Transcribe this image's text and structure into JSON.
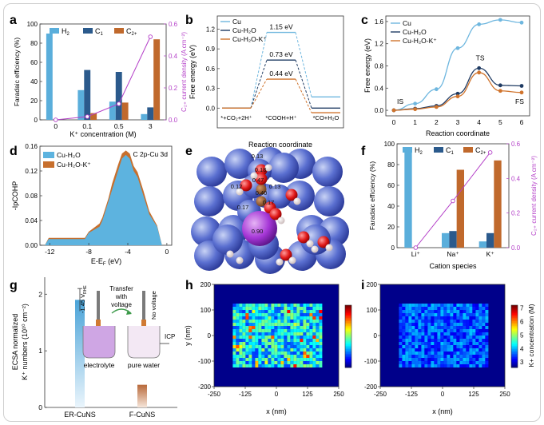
{
  "colors": {
    "h2": "#5aaedb",
    "c1": "#2b5a8c",
    "c2plus": "#c0692c",
    "density": "#b43fc8",
    "cu": "#6fb7df",
    "cu_h2o": "#1f3b63",
    "cu_h2o_k": "#d0742d",
    "pcohp_cu_h2o": "#5db3df",
    "pcohp_cu_h2o_k": "#c76f2d"
  },
  "panels": {
    "a": {
      "letter": "a",
      "legend": [
        "H",
        "C",
        "C"
      ],
      "legend_sub": [
        "2",
        "1",
        "2+"
      ]
    },
    "b": {
      "letter": "b"
    },
    "c": {
      "letter": "c"
    },
    "d": {
      "letter": "d",
      "annotation": "C 2p-Cu 3d"
    },
    "e": {
      "letter": "e",
      "charges": [
        "0.13",
        "0.18",
        "0.47",
        "0.12",
        "0.13",
        "0.40",
        "0.17",
        "0.17",
        "0.90"
      ]
    },
    "f": {
      "letter": "f"
    },
    "g": {
      "letter": "g",
      "ylabel": "ECSA normalized",
      "ylabel2": "K⁺ numbers (10¹⁰ cm⁻²)",
      "categories": [
        "ER-CuNS",
        "F-CuNS"
      ],
      "values": [
        1.9,
        0.4
      ],
      "yticks": [
        "0",
        "1",
        "2"
      ],
      "inset": {
        "voltage": "-1.45 V",
        "voltage_sub": "RHE",
        "transfer": [
          "Transfer",
          "with",
          "voltage"
        ],
        "no_voltage": "No voltage",
        "icp": "ICP",
        "electrolyte": "electrolyte",
        "pure_water": "pure water"
      }
    },
    "h": {
      "letter": "h"
    },
    "i": {
      "letter": "i"
    }
  },
  "chart_data": [
    {
      "panel": "a",
      "type": "bar",
      "categories": [
        "0",
        "0.1",
        "0.5",
        "3"
      ],
      "series": [
        {
          "name": "H2",
          "values": [
            90,
            31,
            19,
            6
          ]
        },
        {
          "name": "C1",
          "values": [
            0,
            52,
            50,
            13
          ]
        },
        {
          "name": "C2+",
          "values": [
            0,
            7,
            18,
            84
          ]
        }
      ],
      "line": {
        "name": "C2+ current density",
        "values": [
          0.0,
          0.02,
          0.1,
          0.52
        ]
      },
      "xlabel": "K⁺ concentration (M)",
      "ylabel": "Faradaic efficiency (%)",
      "y2label": "C₂₊ current density (A cm⁻²)",
      "ylim": [
        0,
        100
      ],
      "y2lim": [
        0,
        0.6
      ],
      "yticks": [
        "0",
        "20",
        "40",
        "60",
        "80",
        "100"
      ],
      "y2ticks": [
        "0.0",
        "0.2",
        "0.4",
        "0.6"
      ]
    },
    {
      "panel": "b",
      "type": "line",
      "xlabel": "Reaction coordinate",
      "ylabel": "Free energy (eV)",
      "ylim": [
        -0.3,
        1.4
      ],
      "yticks": [
        "0.0",
        "0.3",
        "0.6",
        "0.9",
        "1.2"
      ],
      "states": [
        "*+CO₂+2H⁺",
        "*COOH+H⁺",
        "*CO+H₂O"
      ],
      "series": [
        {
          "name": "Cu",
          "values": [
            0.0,
            1.15,
            0.17
          ]
        },
        {
          "name": "Cu-H₂O",
          "values": [
            0.0,
            0.73,
            0.0
          ]
        },
        {
          "name": "Cu-H₂O-K⁺",
          "values": [
            0.0,
            0.44,
            -0.07
          ]
        }
      ],
      "labels": [
        "1.15 eV",
        "0.73 eV",
        "0.44 eV"
      ]
    },
    {
      "panel": "c",
      "type": "line",
      "xlabel": "Reaction coordinate",
      "ylabel": "Free energy (eV)",
      "ylim": [
        -0.1,
        1.7
      ],
      "x": [
        0,
        1,
        2,
        3,
        4,
        5,
        6
      ],
      "yticks": [
        "0.0",
        "0.4",
        "0.8",
        "1.2",
        "1.6"
      ],
      "series": [
        {
          "name": "Cu",
          "values": [
            0.0,
            0.12,
            0.38,
            1.12,
            1.55,
            1.63,
            1.58
          ]
        },
        {
          "name": "Cu-H₂O",
          "values": [
            0.0,
            0.03,
            0.08,
            0.3,
            0.76,
            0.45,
            0.44
          ]
        },
        {
          "name": "Cu-H₂O-K⁺",
          "values": [
            0.0,
            0.02,
            0.06,
            0.25,
            0.68,
            0.35,
            0.32
          ]
        }
      ],
      "annotations": [
        "IS",
        "TS",
        "FS"
      ]
    },
    {
      "panel": "d",
      "type": "area",
      "xlabel": "E-E",
      "xlabel_sub": "F",
      "xlabel_unit": " (eV)",
      "ylabel": "-IpCOHP",
      "xlim": [
        -13,
        0.5
      ],
      "ylim": [
        0,
        0.16
      ],
      "xticks": [
        "-12",
        "-8",
        "-4",
        "0"
      ],
      "yticks": [
        "0.00",
        "0.04",
        "0.08",
        "0.12",
        "0.16"
      ],
      "series": [
        {
          "name": "Cu-H₂O",
          "x": [
            -12.5,
            -12.1,
            -8.4,
            -8.0,
            -6.9,
            -6.6,
            -6.0,
            -5.6,
            -5.0,
            -4.6,
            -4.2,
            -3.8,
            -3.4,
            -3.0,
            -2.4,
            -1.8,
            -1.0,
            -0.5
          ],
          "values": [
            0.0,
            0.01,
            0.01,
            0.02,
            0.03,
            0.04,
            0.07,
            0.09,
            0.12,
            0.14,
            0.146,
            0.14,
            0.12,
            0.11,
            0.08,
            0.05,
            0.03,
            0.0
          ]
        },
        {
          "name": "Cu-H₂O-K⁺",
          "x": [
            -12.5,
            -12.1,
            -8.4,
            -8.0,
            -6.9,
            -6.6,
            -6.0,
            -5.6,
            -5.0,
            -4.6,
            -4.2,
            -3.8,
            -3.4,
            -3.0,
            -2.4,
            -1.8,
            -1.0,
            -0.5
          ],
          "values": [
            0.0,
            0.012,
            0.012,
            0.022,
            0.035,
            0.045,
            0.075,
            0.1,
            0.13,
            0.148,
            0.153,
            0.148,
            0.128,
            0.118,
            0.088,
            0.055,
            0.032,
            0.0
          ]
        }
      ]
    },
    {
      "panel": "f",
      "type": "bar",
      "categories": [
        "Li⁺",
        "Na⁺",
        "K⁺"
      ],
      "series": [
        {
          "name": "H2",
          "values": [
            93,
            14,
            6
          ]
        },
        {
          "name": "C1",
          "values": [
            0,
            16,
            14
          ]
        },
        {
          "name": "C2+",
          "values": [
            0,
            75,
            84
          ]
        }
      ],
      "line": {
        "name": "C2+ current density",
        "values": [
          0.0,
          0.27,
          0.55
        ]
      },
      "xlabel": "Cation species",
      "ylabel": "Faradaic efficiency (%)",
      "y2label": "C₂₊ current density (A cm⁻²)",
      "ylim": [
        0,
        100
      ],
      "y2lim": [
        0,
        0.6
      ],
      "yticks": [
        "0",
        "20",
        "40",
        "60",
        "80",
        "100"
      ],
      "y2ticks": [
        "0.0",
        "0.2",
        "0.4",
        "0.6"
      ]
    },
    {
      "panel": "h",
      "type": "heatmap",
      "xlabel": "x (nm)",
      "ylabel": "y (nm)",
      "xticks": [
        "-250",
        "-125",
        "0",
        "125",
        "250"
      ],
      "yticks": [
        "-200",
        "-100",
        "0",
        "100",
        "200"
      ],
      "xlim": [
        -250,
        250
      ],
      "ylim": [
        -200,
        200
      ],
      "region": {
        "x": [
          -175,
          175
        ],
        "y": [
          -125,
          125
        ]
      },
      "intensity": "high"
    },
    {
      "panel": "i",
      "type": "heatmap",
      "xlabel": "x (nm)",
      "xticks": [
        "-250",
        "-125",
        "0",
        "125",
        "250"
      ],
      "yticks": [
        "-200",
        "-100",
        "0",
        "100",
        "200"
      ],
      "xlim": [
        -250,
        250
      ],
      "ylim": [
        -200,
        200
      ],
      "region": {
        "x": [
          -175,
          175
        ],
        "y": [
          -125,
          125
        ]
      },
      "intensity": "low",
      "colorbar_label": "K+ concentration (M)",
      "colorbar_ticks": [
        "3",
        "4",
        "5",
        "6",
        "7"
      ],
      "colorbar_range": [
        2.6,
        7.2
      ]
    }
  ]
}
